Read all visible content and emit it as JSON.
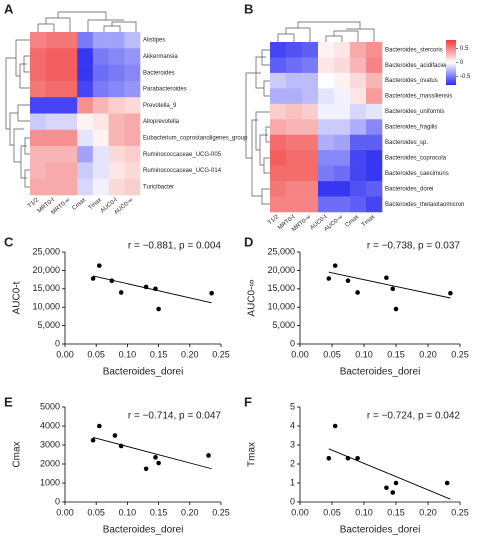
{
  "chart_data": [
    {
      "type": "heatmap",
      "panel": "A",
      "rows": [
        "Alistipes",
        "Akkermansia",
        "Bacteroides",
        "Parabacteroides",
        "Prevotella_9",
        "Alloprevotella",
        "Eubacterium_coprostanoligenes_group",
        "Ruminococcaceae_UCG-005",
        "Ruminococcaceae_UCG-014",
        "Turicibacter"
      ],
      "columns": [
        "T1/2",
        "MRT0-t",
        "MRT0-∞",
        "Cmax",
        "Tmax",
        "AUC0-t",
        "AUC0-∞"
      ],
      "values": [
        [
          0.5,
          0.55,
          0.55,
          -0.5,
          -0.35,
          -0.35,
          -0.25
        ],
        [
          0.6,
          0.65,
          0.65,
          -0.75,
          -0.5,
          -0.45,
          -0.4
        ],
        [
          0.6,
          0.65,
          0.65,
          -0.75,
          -0.55,
          -0.5,
          -0.45
        ],
        [
          0.55,
          0.6,
          0.6,
          -0.7,
          -0.5,
          -0.45,
          -0.4
        ],
        [
          -0.7,
          -0.7,
          -0.7,
          0.45,
          0.3,
          0.2,
          0.15
        ],
        [
          -0.2,
          -0.15,
          -0.15,
          0.05,
          0.1,
          0.3,
          0.35
        ],
        [
          0.45,
          0.45,
          0.45,
          -0.1,
          0.05,
          0.3,
          0.35
        ],
        [
          0.3,
          0.3,
          0.3,
          -0.35,
          -0.1,
          0.15,
          0.2
        ],
        [
          0.3,
          0.35,
          0.35,
          -0.2,
          -0.1,
          0.1,
          0.15
        ],
        [
          0.35,
          0.35,
          0.35,
          -0.15,
          -0.05,
          0.15,
          0.2
        ]
      ],
      "zlim": [
        -0.8,
        0.8
      ],
      "colors": [
        "#2a2af0",
        "#ffffff",
        "#f03a3a"
      ]
    },
    {
      "type": "heatmap",
      "panel": "B",
      "rows": [
        "Bacteroides_stercoris",
        "Bacteroides_acidifaciens",
        "Bacteroides_ovatus",
        "Bacteroides_massiliensis",
        "Bacteroides_uniformis",
        "Bacteroides_fragilis",
        "Bacteroides_sp.",
        "Bacteroides_coprocola",
        "Bacteroides_caecimuris",
        "Bacteroides_dorei",
        "Bacteroides_thetaiotaomicron"
      ],
      "columns": [
        "T1/2",
        "MRT0-t",
        "MRT0-∞",
        "AUC0-t",
        "AUC0-∞",
        "Cmax",
        "Tmax"
      ],
      "values": [
        [
          -0.7,
          -0.65,
          -0.6,
          0.05,
          0.1,
          0.35,
          0.45
        ],
        [
          -0.6,
          -0.55,
          -0.5,
          0.1,
          0.15,
          0.3,
          0.5
        ],
        [
          -0.2,
          -0.25,
          -0.25,
          0,
          0.05,
          0.15,
          0.3
        ],
        [
          -0.3,
          -0.3,
          -0.25,
          -0.1,
          -0.05,
          0.1,
          0.4
        ],
        [
          0.2,
          0.25,
          0.2,
          -0.05,
          -0.05,
          -0.15,
          -0.1
        ],
        [
          0.35,
          0.3,
          0.3,
          -0.2,
          -0.2,
          -0.3,
          -0.45
        ],
        [
          0.6,
          0.55,
          0.55,
          -0.3,
          -0.35,
          -0.6,
          -0.6
        ],
        [
          0.65,
          0.6,
          0.6,
          -0.45,
          -0.45,
          -0.7,
          -0.75
        ],
        [
          0.6,
          0.6,
          0.6,
          -0.5,
          -0.55,
          -0.7,
          -0.75
        ],
        [
          0.55,
          0.5,
          0.5,
          -0.75,
          -0.75,
          -0.65,
          -0.6
        ],
        [
          0.5,
          0.5,
          0.5,
          -0.55,
          -0.55,
          -0.6,
          -0.7
        ]
      ],
      "zlim": [
        -0.8,
        0.8
      ],
      "colors": [
        "#2a2af0",
        "#ffffff",
        "#f03a3a"
      ],
      "zticks": [
        0.5,
        0,
        -0.5
      ]
    },
    {
      "type": "scatter",
      "panel": "C",
      "annotation": "r = −0.881, p = 0.004",
      "x_label": "Bacteroides_dorei",
      "y_label": "AUC0-t",
      "x": [
        0.045,
        0.055,
        0.075,
        0.09,
        0.13,
        0.145,
        0.15,
        0.235
      ],
      "values": [
        17800,
        21300,
        17200,
        14000,
        15500,
        15000,
        9500,
        13800
      ],
      "trendline": {
        "x": [
          0.045,
          0.235
        ],
        "values": [
          18500,
          11200
        ]
      },
      "xlim": [
        0,
        0.25
      ],
      "ylim": [
        0,
        25000
      ],
      "xticks": [
        {
          "value": 0,
          "label": "0.00"
        },
        {
          "value": 0.05,
          "label": "0.05"
        },
        {
          "value": 0.1,
          "label": "0.10"
        },
        {
          "value": 0.15,
          "label": "0.15"
        },
        {
          "value": 0.2,
          "label": "0.20"
        },
        {
          "value": 0.25,
          "label": "0.25"
        }
      ],
      "yticks": [
        0,
        {
          "value": 5000,
          "label": "5,000"
        },
        {
          "value": 10000,
          "label": "10,000"
        },
        {
          "value": 15000,
          "label": "15,000"
        },
        {
          "value": 20000,
          "label": "20,000"
        },
        {
          "value": 25000,
          "label": "25,000"
        }
      ],
      "color": "#000000"
    },
    {
      "type": "scatter",
      "panel": "D",
      "annotation": "r = −0.738, p = 0.037",
      "x_label": "Bacteroides_dorei",
      "y_label": "AUC0-∞",
      "x": [
        0.045,
        0.055,
        0.075,
        0.09,
        0.135,
        0.145,
        0.15,
        0.235
      ],
      "values": [
        17800,
        21300,
        17200,
        14000,
        18000,
        15000,
        9500,
        13800
      ],
      "trendline": {
        "x": [
          0.045,
          0.235
        ],
        "values": [
          19500,
          12500
        ]
      },
      "xlim": [
        0,
        0.25
      ],
      "ylim": [
        0,
        25000
      ],
      "xticks": [
        {
          "value": 0,
          "label": "0.00"
        },
        {
          "value": 0.05,
          "label": "0.05"
        },
        {
          "value": 0.1,
          "label": "0.10"
        },
        {
          "value": 0.15,
          "label": "0.15"
        },
        {
          "value": 0.2,
          "label": "0.20"
        },
        {
          "value": 0.25,
          "label": "0.25"
        }
      ],
      "yticks": [
        0,
        {
          "value": 5000,
          "label": "5,000"
        },
        {
          "value": 10000,
          "label": "10,000"
        },
        {
          "value": 15000,
          "label": "15,000"
        },
        {
          "value": 20000,
          "label": "20,000"
        },
        {
          "value": 25000,
          "label": "25,000"
        }
      ],
      "color": "#000000"
    },
    {
      "type": "scatter",
      "panel": "E",
      "annotation": "r = −0.714, p = 0.047",
      "x_label": "Bacteroides_dorei",
      "y_label": "Cmax",
      "x": [
        0.045,
        0.055,
        0.08,
        0.09,
        0.13,
        0.145,
        0.15,
        0.23
      ],
      "values": [
        3250,
        4000,
        3500,
        2950,
        1750,
        2350,
        2050,
        2450
      ],
      "trendline": {
        "x": [
          0.045,
          0.235
        ],
        "values": [
          3400,
          1750
        ]
      },
      "xlim": [
        0,
        0.25
      ],
      "ylim": [
        0,
        5000
      ],
      "xticks": [
        {
          "value": 0,
          "label": "0.00"
        },
        {
          "value": 0.05,
          "label": "0.05"
        },
        {
          "value": 0.1,
          "label": "0.10"
        },
        {
          "value": 0.15,
          "label": "0.15"
        },
        {
          "value": 0.2,
          "label": "0.20"
        },
        {
          "value": 0.25,
          "label": "0.25"
        }
      ],
      "yticks": [
        0,
        1000,
        2000,
        3000,
        4000,
        5000
      ],
      "color": "#000000"
    },
    {
      "type": "scatter",
      "panel": "F",
      "annotation": "r = −0.724, p = 0.042",
      "x_label": "Bacteroides_dorei",
      "y_label": "Tmax",
      "x": [
        0.045,
        0.055,
        0.075,
        0.09,
        0.135,
        0.145,
        0.15,
        0.23
      ],
      "values": [
        2.3,
        4.0,
        2.3,
        2.3,
        0.75,
        0.5,
        1.0,
        1.0
      ],
      "trendline": {
        "x": [
          0.045,
          0.235
        ],
        "values": [
          2.8,
          0.15
        ]
      },
      "xlim": [
        0,
        0.25
      ],
      "ylim": [
        0,
        5
      ],
      "xticks": [
        {
          "value": 0,
          "label": "0.00"
        },
        {
          "value": 0.05,
          "label": "0.05"
        },
        {
          "value": 0.1,
          "label": "0.10"
        },
        {
          "value": 0.15,
          "label": "0.15"
        },
        {
          "value": 0.2,
          "label": "0.20"
        },
        {
          "value": 0.25,
          "label": "0.25"
        }
      ],
      "yticks": [
        0,
        1,
        2,
        3,
        4,
        5
      ],
      "color": "#000000"
    }
  ]
}
